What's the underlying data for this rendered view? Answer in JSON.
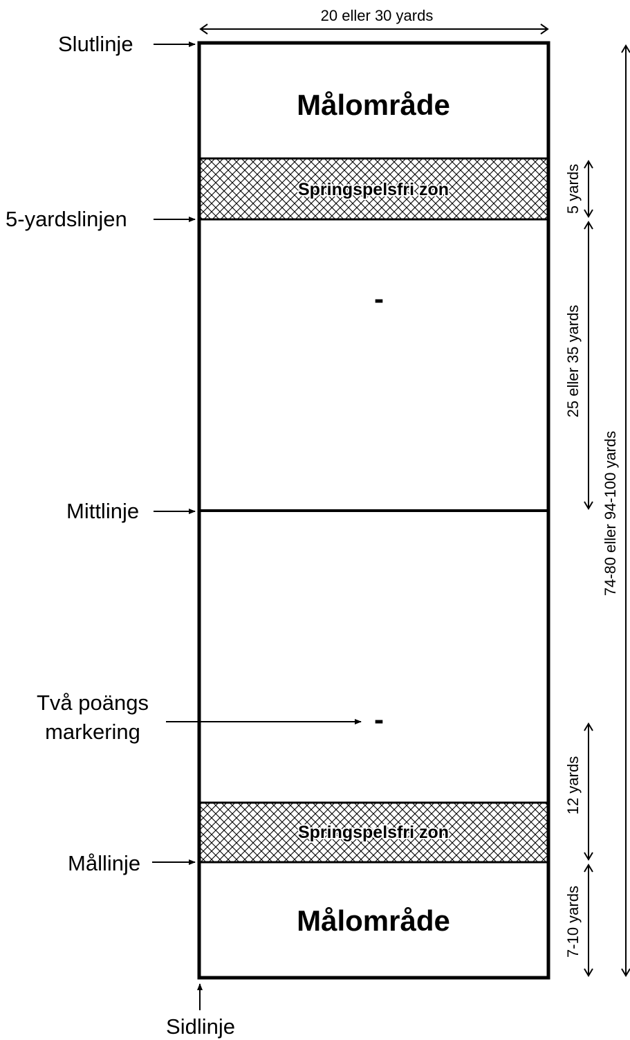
{
  "title_top": "20 eller 30 yards",
  "left_labels": {
    "slutlinje": "Slutlinje",
    "five_yard_line": "5-yardslinjen",
    "mittlinje": "Mittlinje",
    "two_point_line1": "Två poängs",
    "two_point_line2": "markering",
    "mallinje": "Mållinje",
    "sidlinje": "Sidlinje"
  },
  "zones": {
    "endzone_top": "Målområde",
    "nrz_top": "Springspelsfri zon",
    "two_point_mark_top": "-",
    "two_point_mark_bottom": "-",
    "nrz_bottom": "Springspelsfri zon",
    "endzone_bottom": "Målområde"
  },
  "dimensions": {
    "five_yards": "5 yards",
    "mid_section": "25 eller 35 yards",
    "twelve_yards": "12 yards",
    "endzone_depth": "7-10 yards",
    "total_length": "74-80 eller 94-100 yards"
  },
  "colors": {
    "line": "#000000",
    "background": "#ffffff",
    "hatch": "#000000"
  }
}
